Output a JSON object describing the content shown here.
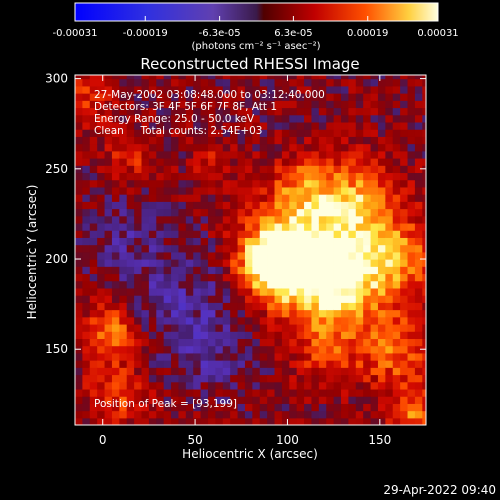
{
  "chart_data": {
    "type": "heatmap",
    "title": "Reconstructed RHESSI Image",
    "xlabel": "Heliocentric X (arcsec)",
    "ylabel": "Heliocentric Y (arcsec)",
    "xlim": [
      -15,
      175
    ],
    "ylim": [
      108,
      302
    ],
    "x_ticks": [
      0,
      50,
      100,
      150
    ],
    "y_ticks": [
      150,
      200,
      250,
      300
    ],
    "colorbar": {
      "ticks": [
        "-0.00031",
        "-0.00019",
        "-6.3e-05",
        "6.3e-05",
        "0.00019",
        "0.00031"
      ],
      "range": [
        -0.00031,
        0.00031
      ],
      "label": "(photons cm⁻² s⁻¹ asec⁻²)"
    },
    "annotations": [
      "27-May-2002 03:08:48.000 to 03:12:40.000",
      "Detectors: 3F 4F 5F 6F 7F 8F, Att 1",
      "Energy Range: 25.0 - 50.0 keV",
      "Clean     Total counts: 2.54E+03"
    ],
    "peak_label": "Position of Peak = [93,199]",
    "peak": [
      93,
      199
    ],
    "blobs": [
      {
        "x": 93,
        "y": 199,
        "amp": 0.00031,
        "sigma": 13
      },
      {
        "x": 112,
        "y": 205,
        "amp": 0.00022,
        "sigma": 22
      },
      {
        "x": 128,
        "y": 186,
        "amp": 0.0002,
        "sigma": 18
      },
      {
        "x": 140,
        "y": 232,
        "amp": 0.00017,
        "sigma": 16
      },
      {
        "x": 108,
        "y": 240,
        "amp": 0.00012,
        "sigma": 12
      },
      {
        "x": 160,
        "y": 200,
        "amp": 0.00016,
        "sigma": 14
      },
      {
        "x": 158,
        "y": 150,
        "amp": 0.00015,
        "sigma": 14
      },
      {
        "x": 168,
        "y": 115,
        "amp": 0.00016,
        "sigma": 10
      },
      {
        "x": 120,
        "y": 150,
        "amp": 9e-05,
        "sigma": 14
      },
      {
        "x": 5,
        "y": 160,
        "amp": 0.00017,
        "sigma": 11
      },
      {
        "x": 8,
        "y": 125,
        "amp": 0.00011,
        "sigma": 12
      },
      {
        "x": 15,
        "y": 258,
        "amp": 0.0001,
        "sigma": 9
      },
      {
        "x": 58,
        "y": 252,
        "amp": 8e-05,
        "sigma": 8
      },
      {
        "x": -10,
        "y": 288,
        "amp": 0.0001,
        "sigma": 10
      },
      {
        "x": 40,
        "y": 180,
        "amp": -8e-05,
        "sigma": 22
      },
      {
        "x": 60,
        "y": 148,
        "amp": -7e-05,
        "sigma": 16
      },
      {
        "x": 10,
        "y": 215,
        "amp": -6e-05,
        "sigma": 14
      }
    ]
  },
  "footer": {
    "timestamp": "29-Apr-2022 09:40"
  },
  "colors": {
    "background": "#000000",
    "text": "#ffffff"
  }
}
